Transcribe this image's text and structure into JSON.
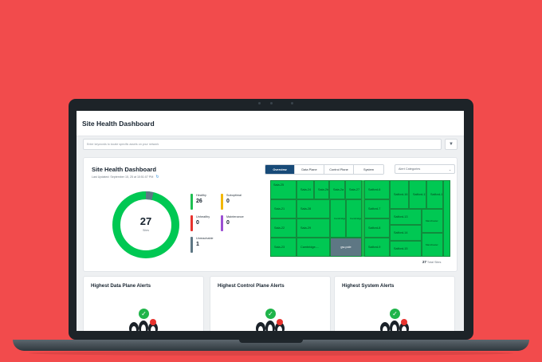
{
  "app": {
    "title": "Site Health Dashboard"
  },
  "search": {
    "placeholder": "Enter keywords to locate specific assets on your network"
  },
  "header": {
    "title": "Site Health Dashboard",
    "updated": "Last Updated: September 15, 25 at 10:51:07 PM"
  },
  "tabs": [
    "Overview",
    "Data Plane",
    "Control Plane",
    "System"
  ],
  "alert_select": {
    "value": "Alert Categories"
  },
  "donut": {
    "total": "27",
    "label": "Sites",
    "segments": [
      {
        "name": "Healthy",
        "value": 26,
        "color": "#00c853"
      },
      {
        "name": "Unreachable",
        "value": 1,
        "color": "#5e7784"
      }
    ]
  },
  "legend": [
    {
      "label": "Healthy",
      "value": "26",
      "color": "#1fbf52"
    },
    {
      "label": "Suboptimal",
      "value": "0",
      "color": "#f2b705"
    },
    {
      "label": "Unhealthy",
      "value": "0",
      "color": "#e8332e"
    },
    {
      "label": "Maintenance",
      "value": "0",
      "color": "#9b4fd3"
    },
    {
      "label": "Unreachable",
      "value": "1",
      "color": "#5e7784"
    }
  ],
  "treemap": {
    "tiles": [
      "Sala-25",
      "Sala-24",
      "Sala-2b",
      "Sala-2a",
      "Sala-27",
      "Sala-21",
      "Sala-28",
      "Sala-22",
      "Sala-29",
      "Sala-23",
      "Cambridge-...",
      "gw-pole",
      "Cambridge",
      "Cambridge",
      "Salford-6",
      "Salford-16",
      "Salford-11",
      "Salford-12",
      "Salford-7",
      "Salford-13",
      "Salford-8",
      "Salford-14",
      "Salford-9",
      "Salford-15",
      "Manchester",
      "Manchester"
    ],
    "total": "27",
    "total_label": "Total Sites"
  },
  "alert_cards": [
    {
      "title": "Highest Data Plane Alerts"
    },
    {
      "title": "Highest Control Plane Alerts"
    },
    {
      "title": "Highest System Alerts"
    }
  ],
  "colors": {
    "accent": "#174a78",
    "healthy": "#00c853",
    "background": "#f24b4c"
  }
}
